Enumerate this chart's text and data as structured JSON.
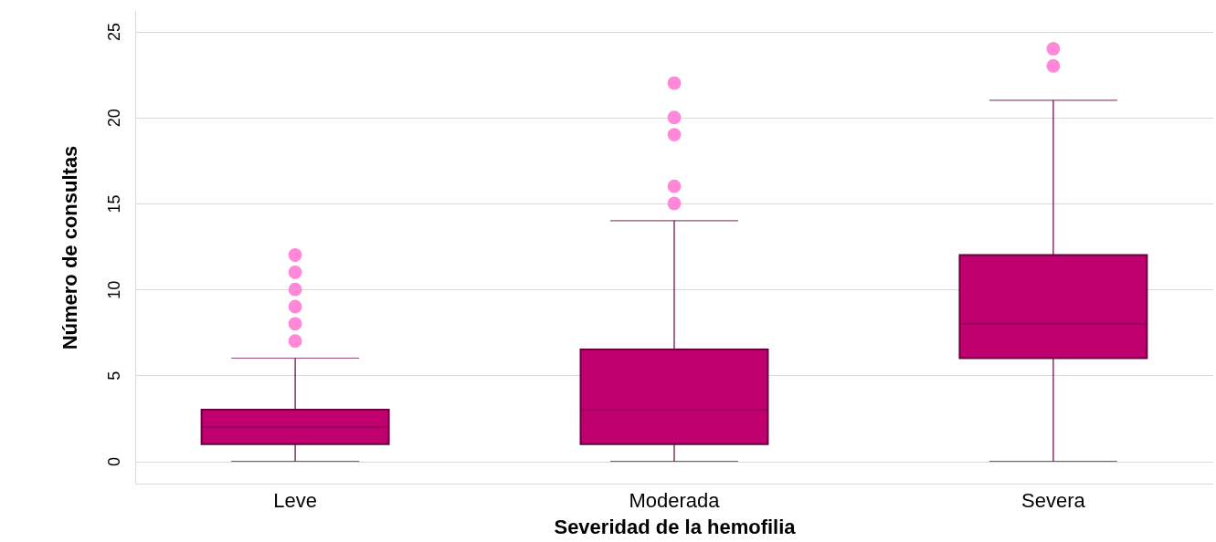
{
  "chart_data": {
    "type": "box",
    "xlabel": "Severidad de la hemofilia",
    "ylabel": "Número de consultas",
    "categories": [
      "Leve",
      "Moderada",
      "Severa"
    ],
    "ylim": [
      -1.3,
      26.2
    ],
    "yticks": [
      0,
      5,
      10,
      15,
      20,
      25
    ],
    "grid": "y",
    "series": [
      {
        "color": "#c0006f",
        "boxes": [
          {
            "low": 0,
            "q1": 1,
            "median": 2,
            "q3": 3,
            "high": 6
          },
          {
            "low": 0,
            "q1": 1,
            "median": 3,
            "q3": 6.5,
            "high": 14
          },
          {
            "low": 0,
            "q1": 6,
            "median": 8,
            "q3": 12,
            "high": 21
          }
        ]
      },
      {
        "type": "scatter",
        "color": "#ff88d8",
        "x": [
          "Leve",
          "Leve",
          "Leve",
          "Leve",
          "Leve",
          "Leve",
          "Moderada",
          "Moderada",
          "Moderada",
          "Moderada",
          "Moderada",
          "Severa",
          "Severa"
        ],
        "values": [
          7,
          8,
          9,
          10,
          11,
          12,
          15,
          16,
          19,
          20,
          22,
          23,
          24
        ]
      }
    ]
  }
}
